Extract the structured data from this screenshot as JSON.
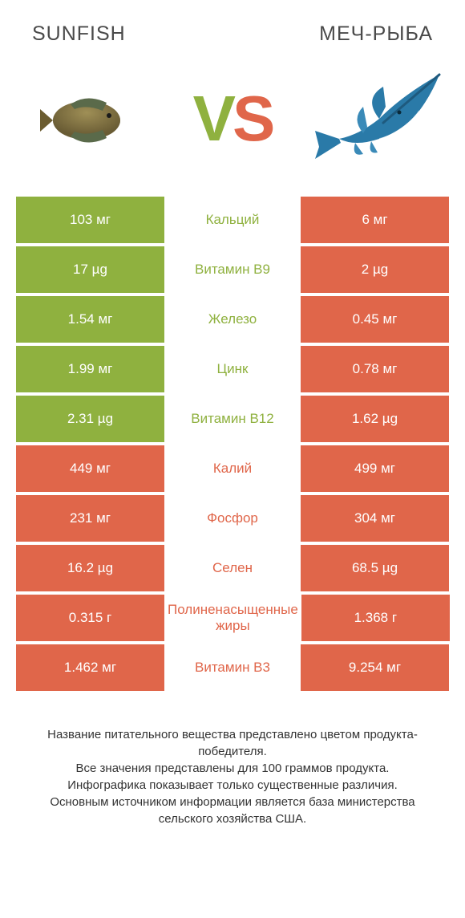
{
  "header": {
    "left_title": "SUNFISH",
    "right_title": "МЕЧ-РЫБА"
  },
  "vs": {
    "v": "V",
    "s": "S"
  },
  "colors": {
    "green": "#8fb13f",
    "orange": "#e0664a",
    "white": "#ffffff",
    "text": "#4a4a4a"
  },
  "rows": [
    {
      "left": "103 мг",
      "mid": "Кальций",
      "right": "6 мг",
      "winner": "left"
    },
    {
      "left": "17 µg",
      "mid": "Витамин B9",
      "right": "2 µg",
      "winner": "left"
    },
    {
      "left": "1.54 мг",
      "mid": "Железо",
      "right": "0.45 мг",
      "winner": "left"
    },
    {
      "left": "1.99 мг",
      "mid": "Цинк",
      "right": "0.78 мг",
      "winner": "left"
    },
    {
      "left": "2.31 µg",
      "mid": "Витамин B12",
      "right": "1.62 µg",
      "winner": "left"
    },
    {
      "left": "449 мг",
      "mid": "Калий",
      "right": "499 мг",
      "winner": "right"
    },
    {
      "left": "231 мг",
      "mid": "Фосфор",
      "right": "304 мг",
      "winner": "right"
    },
    {
      "left": "16.2 µg",
      "mid": "Селен",
      "right": "68.5 µg",
      "winner": "right"
    },
    {
      "left": "0.315 г",
      "mid": "Полиненасыщенные жиры",
      "right": "1.368 г",
      "winner": "right"
    },
    {
      "left": "1.462 мг",
      "mid": "Витамин B3",
      "right": "9.254 мг",
      "winner": "right"
    }
  ],
  "footnote": "Название питательного вещества представлено цветом продукта-победителя.\nВсе значения представлены для 100 граммов продукта.\nИнфографика показывает только существенные различия.\nОсновным источником информации является база министерства сельского хозяйства США."
}
